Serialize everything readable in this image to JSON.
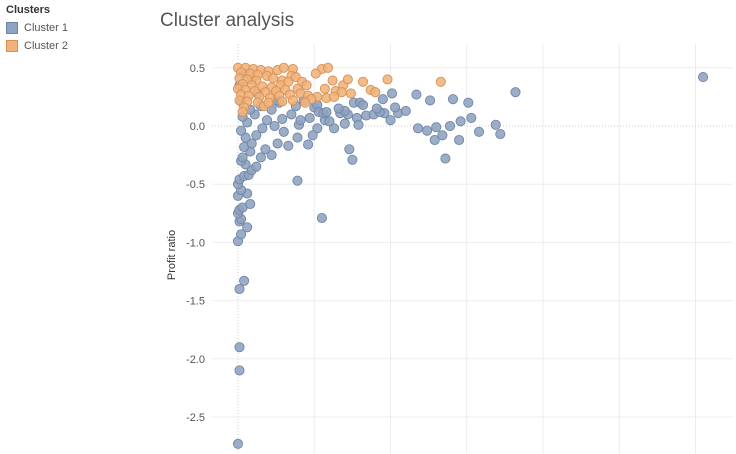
{
  "legend": {
    "title": "Clusters",
    "items": [
      {
        "label": "Cluster 1",
        "color": "#8ea3bf",
        "stroke": "#6f86a8"
      },
      {
        "label": "Cluster 2",
        "color": "#f0b27c",
        "stroke": "#d9914f"
      }
    ]
  },
  "chart_data": {
    "type": "scatter",
    "title": "Cluster analysis",
    "xlabel": "",
    "ylabel": "Profit ratio",
    "ylim": [
      -2.78,
      0.55
    ],
    "xlim": [
      0,
      31
    ],
    "yticks": [
      0.5,
      0.0,
      -0.5,
      -1.0,
      -1.5,
      -2.0,
      -2.5
    ],
    "ytick_labels": [
      "0.5",
      "0.0",
      "-0.5",
      "-1.0",
      "-1.5",
      "-2.0",
      "-2.5"
    ],
    "xgrid": [
      0,
      5,
      10,
      15,
      20,
      25,
      30
    ],
    "grid": true,
    "zero_line": true,
    "legend_position": "top-left",
    "series": [
      {
        "name": "Cluster 1",
        "color": "#8ea3bf",
        "points": [
          [
            0,
            -2.73
          ],
          [
            0.1,
            -2.1
          ],
          [
            0.1,
            -1.9
          ],
          [
            0.1,
            -1.4
          ],
          [
            0.4,
            -1.33
          ],
          [
            0,
            -0.99
          ],
          [
            0.2,
            -0.93
          ],
          [
            0.6,
            -0.87
          ],
          [
            0.1,
            -0.82
          ],
          [
            0.2,
            -0.8
          ],
          [
            0,
            -0.75
          ],
          [
            0.1,
            -0.72
          ],
          [
            0.3,
            -0.7
          ],
          [
            0.8,
            -0.67
          ],
          [
            0,
            -0.6
          ],
          [
            0.6,
            -0.58
          ],
          [
            0.2,
            -0.55
          ],
          [
            0,
            -0.5
          ],
          [
            0.1,
            -0.46
          ],
          [
            0.4,
            -0.43
          ],
          [
            0.7,
            -0.42
          ],
          [
            0.9,
            -0.38
          ],
          [
            1.2,
            -0.35
          ],
          [
            0.5,
            -0.33
          ],
          [
            0.2,
            -0.3
          ],
          [
            0.3,
            -0.27
          ],
          [
            1.5,
            -0.27
          ],
          [
            2.2,
            -0.25
          ],
          [
            0.8,
            -0.22
          ],
          [
            1.8,
            -0.2
          ],
          [
            0.4,
            -0.18
          ],
          [
            0.9,
            -0.15
          ],
          [
            2.6,
            -0.15
          ],
          [
            3.3,
            -0.17
          ],
          [
            4.6,
            -0.16
          ],
          [
            0.5,
            -0.1
          ],
          [
            1.2,
            -0.08
          ],
          [
            3,
            -0.05
          ],
          [
            3.9,
            -0.1
          ],
          [
            0.2,
            -0.04
          ],
          [
            1.6,
            -0.02
          ],
          [
            2.4,
            0
          ],
          [
            4,
            0.01
          ],
          [
            0.6,
            0.03
          ],
          [
            1.9,
            0.05
          ],
          [
            2.9,
            0.06
          ],
          [
            0.3,
            0.08
          ],
          [
            1.1,
            0.1
          ],
          [
            3.5,
            0.1
          ],
          [
            0.8,
            0.14
          ],
          [
            2.2,
            0.14
          ],
          [
            1.5,
            0.17
          ],
          [
            3.8,
            0.17
          ],
          [
            5,
            0.16
          ],
          [
            0.2,
            0.21
          ],
          [
            2.7,
            0.2
          ],
          [
            4.3,
            0.22
          ],
          [
            5.2,
            0.18
          ],
          [
            5.3,
            0.12
          ],
          [
            4.7,
            0.07
          ],
          [
            5.7,
            0.05
          ],
          [
            5.2,
            -0.02
          ],
          [
            4.9,
            -0.08
          ],
          [
            6.3,
            -0.02
          ],
          [
            7.2,
            0.1
          ],
          [
            6.7,
            0.11
          ],
          [
            7,
            0.13
          ],
          [
            7.8,
            0.07
          ],
          [
            7.6,
            0.2
          ],
          [
            8,
            0.2
          ],
          [
            5.6,
            0.11
          ],
          [
            8.4,
            0.09
          ],
          [
            8.9,
            0.1
          ],
          [
            9.6,
            0.11
          ],
          [
            10,
            0.05
          ],
          [
            9.3,
            0.12
          ],
          [
            10.5,
            0.11
          ],
          [
            11,
            0.13
          ],
          [
            7,
            0.02
          ],
          [
            6,
            0.04
          ],
          [
            5.8,
            0.12
          ],
          [
            7.3,
            -0.2
          ],
          [
            7.5,
            -0.29
          ],
          [
            3.9,
            -0.47
          ],
          [
            5.5,
            -0.79
          ],
          [
            7.9,
            0.01
          ],
          [
            9.1,
            0.15
          ],
          [
            10.3,
            0.16
          ],
          [
            11.8,
            -0.02
          ],
          [
            12.4,
            -0.04
          ],
          [
            13,
            -0.01
          ],
          [
            13.4,
            -0.08
          ],
          [
            13.9,
            0
          ],
          [
            8.2,
            0.18
          ],
          [
            9.5,
            0.23
          ],
          [
            10.1,
            0.28
          ],
          [
            11.7,
            0.27
          ],
          [
            12.6,
            0.22
          ],
          [
            14.1,
            0.23
          ],
          [
            15.1,
            0.2
          ],
          [
            15.3,
            0.07
          ],
          [
            14.6,
            0.04
          ],
          [
            16.9,
            0.01
          ],
          [
            17.2,
            -0.07
          ],
          [
            12.9,
            -0.12
          ],
          [
            13.6,
            -0.28
          ],
          [
            14.5,
            -0.12
          ],
          [
            15.8,
            -0.05
          ],
          [
            18.2,
            0.29
          ],
          [
            30.5,
            0.42
          ],
          [
            6.6,
            0.15
          ],
          [
            4.1,
            0.05
          ],
          [
            2.5,
            0.22
          ],
          [
            1.3,
            0.28
          ],
          [
            0.1,
            0.35
          ],
          [
            0.9,
            0.4
          ],
          [
            0.4,
            0.45
          ]
        ]
      },
      {
        "name": "Cluster 2",
        "color": "#f0b27c",
        "points": [
          [
            0,
            0.5
          ],
          [
            0.5,
            0.5
          ],
          [
            1,
            0.49
          ],
          [
            1.5,
            0.48
          ],
          [
            2,
            0.47
          ],
          [
            2.6,
            0.48
          ],
          [
            3,
            0.5
          ],
          [
            3.6,
            0.49
          ],
          [
            0.2,
            0.46
          ],
          [
            0.8,
            0.45
          ],
          [
            1.3,
            0.44
          ],
          [
            1.9,
            0.43
          ],
          [
            0.1,
            0.41
          ],
          [
            0.6,
            0.4
          ],
          [
            1.2,
            0.39
          ],
          [
            2.3,
            0.41
          ],
          [
            3.5,
            0.43
          ],
          [
            2.9,
            0.39
          ],
          [
            0.3,
            0.36
          ],
          [
            0.9,
            0.35
          ],
          [
            1.6,
            0.34
          ],
          [
            2.2,
            0.33
          ],
          [
            2.8,
            0.35
          ],
          [
            3.3,
            0.38
          ],
          [
            3.8,
            0.42
          ],
          [
            4.2,
            0.38
          ],
          [
            4.5,
            0.35
          ],
          [
            0,
            0.32
          ],
          [
            0.5,
            0.31
          ],
          [
            1.1,
            0.3
          ],
          [
            1.8,
            0.29
          ],
          [
            2.5,
            0.3
          ],
          [
            3.1,
            0.31
          ],
          [
            3.9,
            0.32
          ],
          [
            0.2,
            0.27
          ],
          [
            0.7,
            0.26
          ],
          [
            1.4,
            0.25
          ],
          [
            2.1,
            0.24
          ],
          [
            2.7,
            0.26
          ],
          [
            3.4,
            0.27
          ],
          [
            4.1,
            0.28
          ],
          [
            4.6,
            0.26
          ],
          [
            0.1,
            0.22
          ],
          [
            0.6,
            0.21
          ],
          [
            1.3,
            0.2
          ],
          [
            0.4,
            0.16
          ],
          [
            1.7,
            0.17
          ],
          [
            0.3,
            0.12
          ],
          [
            5.5,
            0.49
          ],
          [
            5.9,
            0.5
          ],
          [
            5.1,
            0.45
          ],
          [
            6.2,
            0.39
          ],
          [
            6.9,
            0.35
          ],
          [
            7.2,
            0.4
          ],
          [
            5.7,
            0.32
          ],
          [
            6.4,
            0.3
          ],
          [
            6.8,
            0.29
          ],
          [
            7.4,
            0.28
          ],
          [
            5.2,
            0.25
          ],
          [
            5.8,
            0.24
          ],
          [
            6.3,
            0.25
          ],
          [
            4.8,
            0.23
          ],
          [
            3.6,
            0.22
          ],
          [
            2.9,
            0.21
          ],
          [
            4.4,
            0.2
          ],
          [
            9.8,
            0.4
          ],
          [
            8.7,
            0.31
          ],
          [
            8.2,
            0.38
          ],
          [
            9,
            0.29
          ],
          [
            13.3,
            0.38
          ],
          [
            2,
            0.2
          ]
        ]
      }
    ]
  }
}
